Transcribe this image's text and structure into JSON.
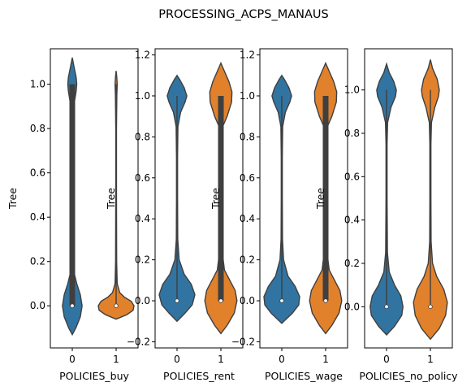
{
  "suptitle": "PROCESSING_ACPS_MANAUS",
  "colors": {
    "cat0": "#3274a1",
    "cat1": "#e1812c",
    "outline": "#3f3f3f",
    "frame": "#000000"
  },
  "chart_data": [
    {
      "type": "violin",
      "xlabel": "POLICIES_buy",
      "ylabel": "Tree",
      "categories": [
        "0",
        "1"
      ],
      "ylim": [
        -0.19,
        1.16
      ],
      "yticks": [
        0.0,
        0.2,
        0.4,
        0.6,
        0.8,
        1.0
      ],
      "ytick_labels": [
        "0.0",
        "0.2",
        "0.4",
        "0.6",
        "0.8",
        "1.0"
      ],
      "violins": [
        {
          "median": 0.0,
          "q1": 0.0,
          "q3": 1.0,
          "min": 0.0,
          "max": 1.0,
          "extent": [
            -0.13,
            1.12
          ],
          "profile": [
            [
              -0.13,
              0.0
            ],
            [
              -0.1,
              0.2
            ],
            [
              -0.05,
              0.45
            ],
            [
              0.0,
              0.55
            ],
            [
              0.05,
              0.45
            ],
            [
              0.1,
              0.25
            ],
            [
              0.15,
              0.1
            ],
            [
              0.3,
              0.07
            ],
            [
              0.5,
              0.07
            ],
            [
              0.7,
              0.07
            ],
            [
              0.85,
              0.08
            ],
            [
              0.92,
              0.12
            ],
            [
              0.97,
              0.22
            ],
            [
              1.0,
              0.25
            ],
            [
              1.03,
              0.22
            ],
            [
              1.07,
              0.12
            ],
            [
              1.12,
              0.0
            ]
          ]
        },
        {
          "median": 0.0,
          "q1": 0.0,
          "q3": 0.0,
          "min": 0.0,
          "max": 1.0,
          "extent": [
            -0.06,
            1.06
          ],
          "profile": [
            [
              -0.06,
              0.0
            ],
            [
              -0.04,
              0.6
            ],
            [
              -0.02,
              0.95
            ],
            [
              0.0,
              1.0
            ],
            [
              0.02,
              0.85
            ],
            [
              0.04,
              0.45
            ],
            [
              0.06,
              0.2
            ],
            [
              0.1,
              0.06
            ],
            [
              0.2,
              0.03
            ],
            [
              0.5,
              0.02
            ],
            [
              0.8,
              0.02
            ],
            [
              0.95,
              0.04
            ],
            [
              1.0,
              0.06
            ],
            [
              1.03,
              0.04
            ],
            [
              1.06,
              0.0
            ]
          ]
        }
      ]
    },
    {
      "type": "violin",
      "xlabel": "POLICIES_rent",
      "ylabel": "Tree",
      "categories": [
        "0",
        "1"
      ],
      "ylim": [
        -0.23,
        1.23
      ],
      "yticks": [
        -0.2,
        0.0,
        0.2,
        0.4,
        0.6,
        0.8,
        1.0,
        1.2
      ],
      "ytick_labels": [
        "−0.2",
        "0.0",
        "0.2",
        "0.4",
        "0.6",
        "0.8",
        "1.0",
        "1.2"
      ],
      "violins": [
        {
          "median": 0.0,
          "q1": 0.0,
          "q3": 0.0,
          "min": 0.0,
          "max": 1.0,
          "extent": [
            -0.1,
            1.1
          ],
          "profile": [
            [
              -0.1,
              0.0
            ],
            [
              -0.06,
              0.45
            ],
            [
              -0.02,
              0.85
            ],
            [
              0.03,
              1.0
            ],
            [
              0.08,
              0.8
            ],
            [
              0.13,
              0.4
            ],
            [
              0.2,
              0.12
            ],
            [
              0.3,
              0.04
            ],
            [
              0.5,
              0.03
            ],
            [
              0.7,
              0.03
            ],
            [
              0.85,
              0.05
            ],
            [
              0.92,
              0.2
            ],
            [
              0.97,
              0.45
            ],
            [
              1.0,
              0.55
            ],
            [
              1.04,
              0.4
            ],
            [
              1.08,
              0.15
            ],
            [
              1.1,
              0.0
            ]
          ]
        },
        {
          "median": 0.0,
          "q1": 0.0,
          "q3": 1.0,
          "min": 0.0,
          "max": 1.0,
          "extent": [
            -0.16,
            1.16
          ],
          "profile": [
            [
              -0.16,
              0.0
            ],
            [
              -0.12,
              0.35
            ],
            [
              -0.06,
              0.75
            ],
            [
              0.0,
              0.9
            ],
            [
              0.05,
              0.8
            ],
            [
              0.1,
              0.5
            ],
            [
              0.15,
              0.2
            ],
            [
              0.25,
              0.06
            ],
            [
              0.5,
              0.05
            ],
            [
              0.75,
              0.05
            ],
            [
              0.85,
              0.1
            ],
            [
              0.9,
              0.35
            ],
            [
              0.97,
              0.6
            ],
            [
              1.02,
              0.62
            ],
            [
              1.07,
              0.45
            ],
            [
              1.12,
              0.2
            ],
            [
              1.16,
              0.0
            ]
          ]
        }
      ]
    },
    {
      "type": "violin",
      "xlabel": "POLICIES_wage",
      "ylabel": "Tree",
      "categories": [
        "0",
        "1"
      ],
      "ylim": [
        -0.23,
        1.23
      ],
      "yticks": [
        -0.2,
        0.0,
        0.2,
        0.4,
        0.6,
        0.8,
        1.0,
        1.2
      ],
      "ytick_labels": [
        "−0.2",
        "0.0",
        "0.2",
        "0.4",
        "0.6",
        "0.8",
        "1.0",
        "1.2"
      ],
      "violins": [
        {
          "median": 0.0,
          "q1": 0.0,
          "q3": 0.0,
          "min": 0.0,
          "max": 1.0,
          "extent": [
            -0.11,
            1.1
          ],
          "profile": [
            [
              -0.11,
              0.0
            ],
            [
              -0.06,
              0.6
            ],
            [
              -0.02,
              0.95
            ],
            [
              0.02,
              1.0
            ],
            [
              0.07,
              0.75
            ],
            [
              0.12,
              0.35
            ],
            [
              0.2,
              0.1
            ],
            [
              0.3,
              0.04
            ],
            [
              0.5,
              0.03
            ],
            [
              0.7,
              0.03
            ],
            [
              0.85,
              0.05
            ],
            [
              0.92,
              0.2
            ],
            [
              0.97,
              0.45
            ],
            [
              1.0,
              0.55
            ],
            [
              1.04,
              0.4
            ],
            [
              1.08,
              0.15
            ],
            [
              1.1,
              0.0
            ]
          ]
        },
        {
          "median": 0.0,
          "q1": 0.0,
          "q3": 1.0,
          "min": 0.0,
          "max": 1.0,
          "extent": [
            -0.16,
            1.16
          ],
          "profile": [
            [
              -0.16,
              0.0
            ],
            [
              -0.12,
              0.35
            ],
            [
              -0.06,
              0.75
            ],
            [
              0.0,
              0.9
            ],
            [
              0.05,
              0.8
            ],
            [
              0.1,
              0.5
            ],
            [
              0.15,
              0.2
            ],
            [
              0.25,
              0.06
            ],
            [
              0.5,
              0.05
            ],
            [
              0.75,
              0.05
            ],
            [
              0.85,
              0.1
            ],
            [
              0.9,
              0.35
            ],
            [
              0.97,
              0.6
            ],
            [
              1.02,
              0.62
            ],
            [
              1.07,
              0.45
            ],
            [
              1.12,
              0.2
            ],
            [
              1.16,
              0.0
            ]
          ]
        }
      ]
    },
    {
      "type": "violin",
      "xlabel": "POLICIES_no_policy",
      "ylabel": "Tree",
      "categories": [
        "0",
        "1"
      ],
      "ylim": [
        -0.19,
        1.19
      ],
      "yticks": [
        0.0,
        0.2,
        0.4,
        0.6,
        0.8,
        1.0
      ],
      "ytick_labels": [
        "0.0",
        "0.2",
        "0.4",
        "0.6",
        "0.8",
        "1.0"
      ],
      "violins": [
        {
          "median": 0.0,
          "q1": 0.0,
          "q3": 0.0,
          "min": 0.0,
          "max": 1.0,
          "extent": [
            -0.13,
            1.12
          ],
          "profile": [
            [
              -0.13,
              0.0
            ],
            [
              -0.09,
              0.45
            ],
            [
              -0.04,
              0.85
            ],
            [
              0.0,
              0.92
            ],
            [
              0.05,
              0.8
            ],
            [
              0.1,
              0.45
            ],
            [
              0.16,
              0.15
            ],
            [
              0.25,
              0.05
            ],
            [
              0.5,
              0.03
            ],
            [
              0.75,
              0.03
            ],
            [
              0.85,
              0.06
            ],
            [
              0.92,
              0.25
            ],
            [
              0.97,
              0.5
            ],
            [
              1.0,
              0.55
            ],
            [
              1.04,
              0.4
            ],
            [
              1.08,
              0.15
            ],
            [
              1.12,
              0.0
            ]
          ]
        },
        {
          "median": 0.0,
          "q1": 0.0,
          "q3": 0.0,
          "min": 0.0,
          "max": 1.0,
          "extent": [
            -0.15,
            1.14
          ],
          "profile": [
            [
              -0.15,
              0.0
            ],
            [
              -0.1,
              0.5
            ],
            [
              -0.04,
              0.85
            ],
            [
              0.02,
              0.95
            ],
            [
              0.08,
              0.75
            ],
            [
              0.14,
              0.35
            ],
            [
              0.2,
              0.12
            ],
            [
              0.3,
              0.04
            ],
            [
              0.5,
              0.03
            ],
            [
              0.75,
              0.03
            ],
            [
              0.85,
              0.06
            ],
            [
              0.92,
              0.25
            ],
            [
              0.97,
              0.45
            ],
            [
              1.0,
              0.5
            ],
            [
              1.05,
              0.38
            ],
            [
              1.1,
              0.12
            ],
            [
              1.14,
              0.0
            ]
          ]
        }
      ]
    }
  ]
}
